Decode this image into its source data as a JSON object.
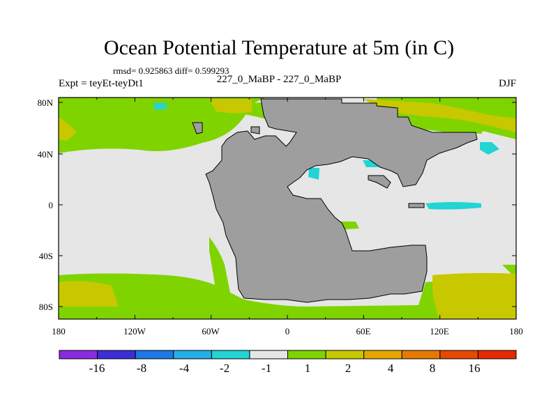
{
  "title": "Ocean Potential Temperature at 5m (in C)",
  "stats": "rmsd= 0.925863 diff= 0.599293",
  "experiment": "Expt = teyEt-teyDt1",
  "comparison": "227_0_MaBP - 227_0_MaBP",
  "season": "DJF",
  "axes": {
    "x_ticks": [
      "180",
      "120W",
      "60W",
      "0",
      "60E",
      "120E",
      "180"
    ],
    "y_ticks": [
      "80N",
      "40N",
      "0",
      "40S",
      "80S"
    ]
  },
  "colorbar": {
    "colors": [
      "#8a2be2",
      "#3a2fd6",
      "#1e78e6",
      "#26aee6",
      "#22d4d4",
      "#e6e6e6",
      "#7fd400",
      "#c8c800",
      "#e6a800",
      "#e67a00",
      "#e64a00",
      "#e62a00"
    ],
    "labels": [
      "-16",
      "-8",
      "-4",
      "-2",
      "-1",
      "1",
      "2",
      "4",
      "8",
      "16"
    ]
  },
  "palette": {
    "land": "#9e9e9e",
    "neutral": "#e6e6e6",
    "green": "#7fd400",
    "yellow": "#c8c800",
    "cyan": "#22d4d4"
  }
}
